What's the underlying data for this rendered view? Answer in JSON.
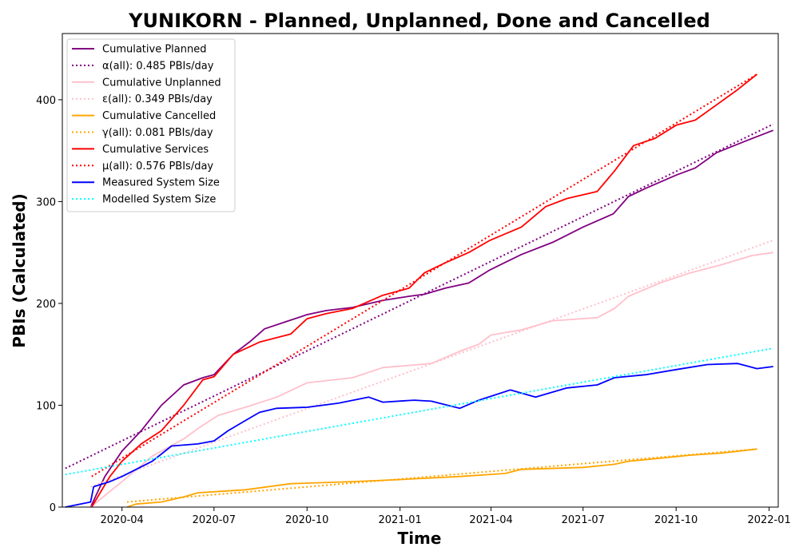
{
  "chart_data": {
    "type": "line",
    "title": "YUNIKORN - Planned, Unplanned, Done  and Cancelled",
    "xlabel": "Time",
    "ylabel": "PBIs (Calculated)",
    "xlim": [
      "2020-02-02",
      "2022-01-10"
    ],
    "ylim": [
      0,
      465
    ],
    "legend_position": "top-left",
    "x_ticks": [
      "2020-04-01",
      "2020-07-01",
      "2020-10-01",
      "2021-01-01",
      "2021-04-01",
      "2021-07-01",
      "2021-10-01",
      "2022-01-01"
    ],
    "x_tick_labels": [
      "2020-04",
      "2020-07",
      "2020-10",
      "2021-01",
      "2021-04",
      "2021-07",
      "2021-10",
      "2022-01"
    ],
    "y_ticks": [
      0,
      100,
      200,
      300,
      400
    ],
    "y_tick_labels": [
      "0",
      "100",
      "200",
      "300",
      "400"
    ],
    "series": [
      {
        "name": "Cumulative Planned",
        "color": "#800080",
        "style": "solid",
        "points": [
          [
            "2020-03-01",
            0
          ],
          [
            "2020-03-15",
            30
          ],
          [
            "2020-04-01",
            55
          ],
          [
            "2020-04-20",
            75
          ],
          [
            "2020-05-10",
            100
          ],
          [
            "2020-06-01",
            120
          ],
          [
            "2020-06-20",
            127
          ],
          [
            "2020-07-01",
            130
          ],
          [
            "2020-07-20",
            150
          ],
          [
            "2020-08-05",
            162
          ],
          [
            "2020-08-20",
            175
          ],
          [
            "2020-09-10",
            182
          ],
          [
            "2020-10-01",
            189
          ],
          [
            "2020-10-20",
            193
          ],
          [
            "2020-11-15",
            196
          ],
          [
            "2020-12-15",
            203
          ],
          [
            "2021-01-10",
            207
          ],
          [
            "2021-01-25",
            209
          ],
          [
            "2021-02-15",
            215
          ],
          [
            "2021-03-10",
            220
          ],
          [
            "2021-03-31",
            233
          ],
          [
            "2021-05-01",
            248
          ],
          [
            "2021-06-01",
            260
          ],
          [
            "2021-07-01",
            275
          ],
          [
            "2021-07-31",
            288
          ],
          [
            "2021-08-15",
            305
          ],
          [
            "2021-09-01",
            313
          ],
          [
            "2021-10-01",
            326
          ],
          [
            "2021-10-20",
            333
          ],
          [
            "2021-11-10",
            348
          ],
          [
            "2021-12-10",
            360
          ],
          [
            "2022-01-05",
            370
          ]
        ]
      },
      {
        "name": "α(all): 0.485 PBIs/day",
        "color": "#800080",
        "style": "dotted",
        "points": [
          [
            "2020-02-05",
            38
          ],
          [
            "2022-01-05",
            376
          ]
        ]
      },
      {
        "name": "Cumulative Unplanned",
        "color": "#ffc0cb",
        "style": "solid",
        "points": [
          [
            "2020-03-01",
            0
          ],
          [
            "2020-04-01",
            25
          ],
          [
            "2020-05-01",
            50
          ],
          [
            "2020-06-01",
            67
          ],
          [
            "2020-06-15",
            77
          ],
          [
            "2020-07-05",
            90
          ],
          [
            "2020-08-01",
            98
          ],
          [
            "2020-09-01",
            108
          ],
          [
            "2020-10-01",
            122
          ],
          [
            "2020-11-15",
            127
          ],
          [
            "2020-12-15",
            137
          ],
          [
            "2021-02-01",
            141
          ],
          [
            "2021-03-01",
            153
          ],
          [
            "2021-03-20",
            160
          ],
          [
            "2021-04-01",
            169
          ],
          [
            "2021-05-01",
            174
          ],
          [
            "2021-06-01",
            183
          ],
          [
            "2021-07-15",
            186
          ],
          [
            "2021-08-01",
            195
          ],
          [
            "2021-08-15",
            207
          ],
          [
            "2021-09-15",
            220
          ],
          [
            "2021-10-15",
            230
          ],
          [
            "2021-11-15",
            238
          ],
          [
            "2021-12-15",
            247
          ],
          [
            "2022-01-05",
            250
          ]
        ]
      },
      {
        "name": "ε(all): 0.349 PBIs/day",
        "color": "#ffc0cb",
        "style": "dotted",
        "points": [
          [
            "2020-03-01",
            20
          ],
          [
            "2022-01-05",
            262
          ]
        ]
      },
      {
        "name": "Cumulative Cancelled",
        "color": "#ffa500",
        "style": "solid",
        "points": [
          [
            "2020-04-06",
            0
          ],
          [
            "2020-04-15",
            3
          ],
          [
            "2020-05-10",
            5
          ],
          [
            "2020-06-01",
            10
          ],
          [
            "2020-06-15",
            14
          ],
          [
            "2020-08-01",
            17
          ],
          [
            "2020-09-15",
            23
          ],
          [
            "2020-11-15",
            25
          ],
          [
            "2020-12-31",
            27
          ],
          [
            "2021-03-01",
            30
          ],
          [
            "2021-04-15",
            33
          ],
          [
            "2021-05-01",
            37
          ],
          [
            "2021-07-01",
            39
          ],
          [
            "2021-08-01",
            42
          ],
          [
            "2021-08-15",
            45
          ],
          [
            "2021-09-15",
            48
          ],
          [
            "2021-10-15",
            51
          ],
          [
            "2021-11-15",
            53
          ],
          [
            "2021-12-20",
            57
          ]
        ]
      },
      {
        "name": "γ(all): 0.081 PBIs/day",
        "color": "#ffa500",
        "style": "dotted",
        "points": [
          [
            "2020-04-06",
            5
          ],
          [
            "2021-12-20",
            57
          ]
        ]
      },
      {
        "name": "Cumulative Services",
        "color": "#ff0000",
        "style": "solid",
        "points": [
          [
            "2020-03-02",
            0
          ],
          [
            "2020-03-20",
            30
          ],
          [
            "2020-04-01",
            45
          ],
          [
            "2020-04-20",
            62
          ],
          [
            "2020-05-10",
            75
          ],
          [
            "2020-06-01",
            100
          ],
          [
            "2020-06-20",
            125
          ],
          [
            "2020-07-01",
            128
          ],
          [
            "2020-07-20",
            150
          ],
          [
            "2020-08-15",
            162
          ],
          [
            "2020-09-15",
            170
          ],
          [
            "2020-10-01",
            185
          ],
          [
            "2020-10-20",
            190
          ],
          [
            "2020-11-15",
            195
          ],
          [
            "2020-12-15",
            208
          ],
          [
            "2021-01-10",
            215
          ],
          [
            "2021-01-25",
            230
          ],
          [
            "2021-02-15",
            240
          ],
          [
            "2021-03-10",
            250
          ],
          [
            "2021-03-31",
            262
          ],
          [
            "2021-05-01",
            275
          ],
          [
            "2021-05-25",
            295
          ],
          [
            "2021-06-15",
            303
          ],
          [
            "2021-07-15",
            310
          ],
          [
            "2021-08-01",
            330
          ],
          [
            "2021-08-20",
            355
          ],
          [
            "2021-09-10",
            362
          ],
          [
            "2021-10-01",
            375
          ],
          [
            "2021-10-20",
            380
          ],
          [
            "2021-11-10",
            395
          ],
          [
            "2021-12-01",
            410
          ],
          [
            "2021-12-20",
            425
          ]
        ]
      },
      {
        "name": "μ(all): 0.576 PBIs/day",
        "color": "#ff0000",
        "style": "dotted",
        "points": [
          [
            "2020-03-02",
            30
          ],
          [
            "2021-12-20",
            425
          ]
        ]
      },
      {
        "name": "Measured System Size",
        "color": "#0000ff",
        "style": "solid",
        "points": [
          [
            "2020-02-05",
            0
          ],
          [
            "2020-03-01",
            5
          ],
          [
            "2020-03-04",
            20
          ],
          [
            "2020-03-20",
            25
          ],
          [
            "2020-04-01",
            30
          ],
          [
            "2020-05-01",
            45
          ],
          [
            "2020-05-20",
            60
          ],
          [
            "2020-06-15",
            62
          ],
          [
            "2020-07-01",
            65
          ],
          [
            "2020-07-15",
            75
          ],
          [
            "2020-08-01",
            85
          ],
          [
            "2020-08-15",
            93
          ],
          [
            "2020-09-01",
            97
          ],
          [
            "2020-10-01",
            98
          ],
          [
            "2020-11-01",
            102
          ],
          [
            "2020-12-01",
            108
          ],
          [
            "2020-12-15",
            103
          ],
          [
            "2021-01-15",
            105
          ],
          [
            "2021-02-01",
            104
          ],
          [
            "2021-03-01",
            97
          ],
          [
            "2021-03-20",
            105
          ],
          [
            "2021-04-20",
            115
          ],
          [
            "2021-05-15",
            108
          ],
          [
            "2021-06-15",
            117
          ],
          [
            "2021-07-15",
            120
          ],
          [
            "2021-08-01",
            127
          ],
          [
            "2021-09-01",
            130
          ],
          [
            "2021-10-01",
            135
          ],
          [
            "2021-11-01",
            140
          ],
          [
            "2021-12-01",
            141
          ],
          [
            "2021-12-20",
            136
          ],
          [
            "2022-01-05",
            138
          ]
        ]
      },
      {
        "name": "Modelled System Size",
        "color": "#00ffff",
        "style": "dotted",
        "points": [
          [
            "2020-02-05",
            32
          ],
          [
            "2022-01-05",
            156
          ]
        ]
      }
    ]
  }
}
